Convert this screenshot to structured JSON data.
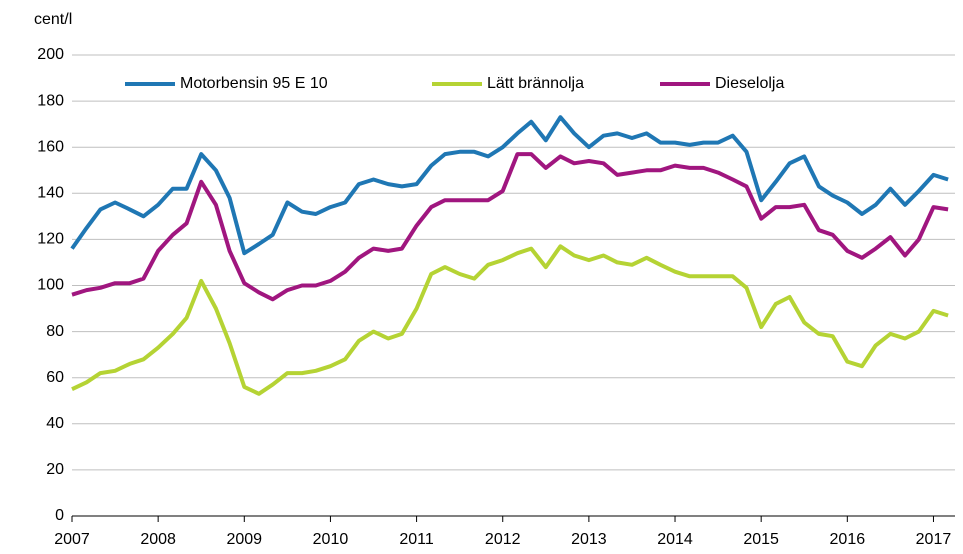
{
  "chart_data": {
    "type": "line",
    "y_label": "cent/l",
    "x": [
      2007.0,
      2007.17,
      2007.33,
      2007.5,
      2007.67,
      2007.83,
      2008.0,
      2008.17,
      2008.33,
      2008.5,
      2008.67,
      2008.83,
      2009.0,
      2009.17,
      2009.33,
      2009.5,
      2009.67,
      2009.83,
      2010.0,
      2010.17,
      2010.33,
      2010.5,
      2010.67,
      2010.83,
      2011.0,
      2011.17,
      2011.33,
      2011.5,
      2011.67,
      2011.83,
      2012.0,
      2012.17,
      2012.33,
      2012.5,
      2012.67,
      2012.83,
      2013.0,
      2013.17,
      2013.33,
      2013.5,
      2013.67,
      2013.83,
      2014.0,
      2014.17,
      2014.33,
      2014.5,
      2014.67,
      2014.83,
      2015.0,
      2015.17,
      2015.33,
      2015.5,
      2015.67,
      2015.83,
      2016.0,
      2016.17,
      2016.33,
      2016.5,
      2016.67,
      2016.83,
      2017.0,
      2017.17
    ],
    "series": [
      {
        "name": "Motorbensin 95 E 10",
        "color": "#1f77b4",
        "values": [
          116,
          125,
          133,
          136,
          133,
          130,
          135,
          142,
          142,
          157,
          150,
          138,
          114,
          118,
          122,
          136,
          132,
          131,
          134,
          136,
          144,
          146,
          144,
          143,
          144,
          152,
          157,
          158,
          158,
          156,
          160,
          166,
          171,
          163,
          173,
          166,
          160,
          165,
          166,
          164,
          166,
          162,
          162,
          161,
          162,
          162,
          165,
          158,
          137,
          145,
          153,
          156,
          143,
          139,
          136,
          131,
          135,
          142,
          135,
          141,
          148,
          146
        ]
      },
      {
        "name": "Lätt brännolja",
        "color": "#b5d334",
        "values": [
          55,
          58,
          62,
          63,
          66,
          68,
          73,
          79,
          86,
          102,
          90,
          75,
          56,
          53,
          57,
          62,
          62,
          63,
          65,
          68,
          76,
          80,
          77,
          79,
          90,
          105,
          108,
          105,
          103,
          109,
          111,
          114,
          116,
          108,
          117,
          113,
          111,
          113,
          110,
          109,
          112,
          109,
          106,
          104,
          104,
          104,
          104,
          99,
          82,
          92,
          95,
          84,
          79,
          78,
          67,
          65,
          74,
          79,
          77,
          80,
          89,
          87
        ]
      },
      {
        "name": "Dieselolja",
        "color": "#a0167f",
        "values": [
          96,
          98,
          99,
          101,
          101,
          103,
          115,
          122,
          127,
          145,
          135,
          115,
          101,
          97,
          94,
          98,
          100,
          100,
          102,
          106,
          112,
          116,
          115,
          116,
          126,
          134,
          137,
          137,
          137,
          137,
          141,
          157,
          157,
          151,
          156,
          153,
          154,
          153,
          148,
          149,
          150,
          150,
          152,
          151,
          151,
          149,
          146,
          143,
          129,
          134,
          134,
          135,
          124,
          122,
          115,
          112,
          116,
          121,
          113,
          120,
          134,
          133
        ]
      }
    ],
    "xlim": [
      2007,
      2017.25
    ],
    "xticks": [
      2007,
      2008,
      2009,
      2010,
      2011,
      2012,
      2013,
      2014,
      2015,
      2016,
      2017
    ],
    "ylim": [
      0,
      200
    ],
    "yticks": [
      0,
      20,
      40,
      60,
      80,
      100,
      120,
      140,
      160,
      180,
      200
    ],
    "grid": true
  }
}
